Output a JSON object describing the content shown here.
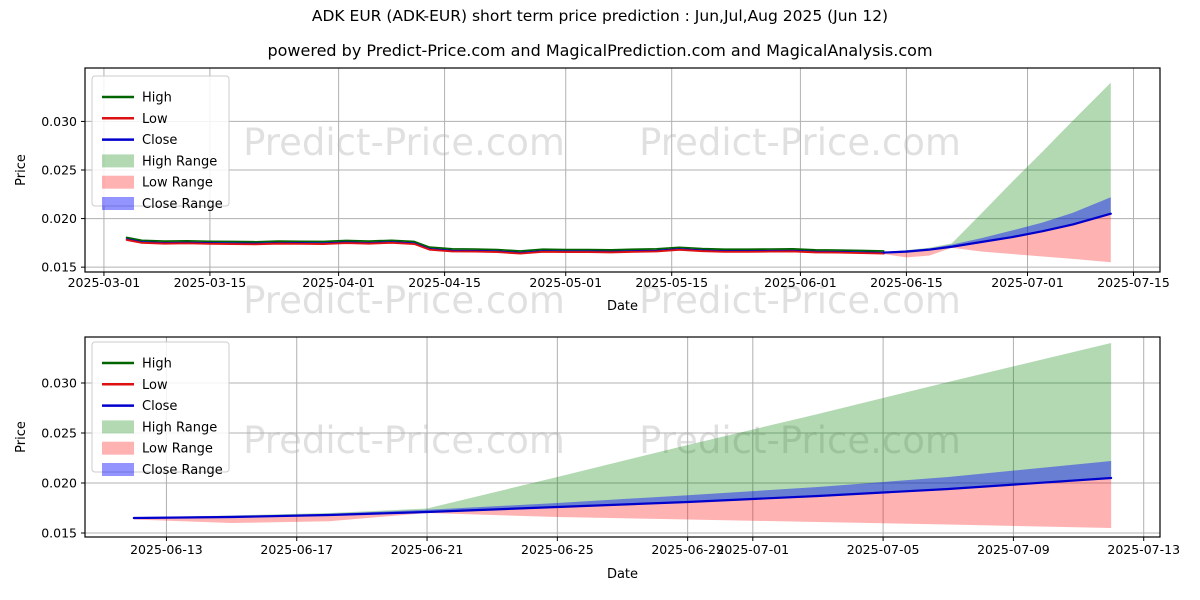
{
  "page": {
    "title": "ADK EUR (ADK-EUR) short term price prediction : Jun,Jul,Aug 2025 (Jun 12)",
    "subtitle": "powered by Predict-Price.com and MagicalPrediction.com and MagicalAnalysis.com",
    "watermark": "Predict-Price.com"
  },
  "colors": {
    "high": "#006400",
    "low": "#dd1111",
    "close": "#0000cc",
    "high_range": "#0080004d",
    "low_range": "#ff00004d",
    "close_range": "#0000ff6b",
    "grid": "#b0b0b0",
    "spine": "#000000"
  },
  "chart_data": {
    "type": "line",
    "legend_position": "upper left",
    "grid": true,
    "legend": [
      {
        "label": "High",
        "swatch": "line",
        "color_key": "high"
      },
      {
        "label": "Low",
        "swatch": "line",
        "color_key": "low"
      },
      {
        "label": "Close",
        "swatch": "line",
        "color_key": "close"
      },
      {
        "label": "High Range",
        "swatch": "patch",
        "color_key": "high_range"
      },
      {
        "label": "Low Range",
        "swatch": "patch",
        "color_key": "low_range"
      },
      {
        "label": "Close Range",
        "swatch": "patch",
        "color_key": "close_range"
      }
    ],
    "historical": {
      "dates": [
        "2025-03-04",
        "2025-03-06",
        "2025-03-09",
        "2025-03-12",
        "2025-03-15",
        "2025-03-18",
        "2025-03-21",
        "2025-03-24",
        "2025-03-27",
        "2025-03-30",
        "2025-04-02",
        "2025-04-05",
        "2025-04-08",
        "2025-04-11",
        "2025-04-13",
        "2025-04-16",
        "2025-04-19",
        "2025-04-22",
        "2025-04-25",
        "2025-04-28",
        "2025-05-01",
        "2025-05-04",
        "2025-05-07",
        "2025-05-10",
        "2025-05-13",
        "2025-05-16",
        "2025-05-19",
        "2025-05-22",
        "2025-05-25",
        "2025-05-28",
        "2025-05-31",
        "2025-06-03",
        "2025-06-06",
        "2025-06-09",
        "2025-06-12"
      ],
      "high": [
        0.01806,
        0.01776,
        0.01768,
        0.01771,
        0.01766,
        0.01764,
        0.01761,
        0.01768,
        0.01766,
        0.01764,
        0.01774,
        0.01768,
        0.01776,
        0.01764,
        0.01706,
        0.01688,
        0.01686,
        0.01681,
        0.01666,
        0.01684,
        0.01681,
        0.01681,
        0.01678,
        0.01684,
        0.01688,
        0.01704,
        0.01691,
        0.01684,
        0.01684,
        0.01686,
        0.01688,
        0.01678,
        0.01676,
        0.01671,
        0.01666
      ],
      "low": [
        0.0178,
        0.0175,
        0.01742,
        0.01745,
        0.0174,
        0.01738,
        0.01735,
        0.01742,
        0.0174,
        0.01738,
        0.01748,
        0.01742,
        0.0175,
        0.01738,
        0.0168,
        0.01662,
        0.0166,
        0.01655,
        0.0164,
        0.01658,
        0.01655,
        0.01655,
        0.01652,
        0.01658,
        0.01662,
        0.01678,
        0.01665,
        0.01658,
        0.01658,
        0.0166,
        0.01662,
        0.01652,
        0.0165,
        0.01645,
        0.0164
      ],
      "close": [
        0.0179,
        0.0176,
        0.01752,
        0.01755,
        0.0175,
        0.01748,
        0.01745,
        0.01752,
        0.0175,
        0.01748,
        0.01758,
        0.01752,
        0.0176,
        0.01748,
        0.0169,
        0.01672,
        0.0167,
        0.01665,
        0.0165,
        0.01668,
        0.01665,
        0.01665,
        0.01662,
        0.01668,
        0.01672,
        0.01688,
        0.01675,
        0.01668,
        0.01668,
        0.0167,
        0.01672,
        0.01662,
        0.0166,
        0.01655,
        0.0165
      ]
    },
    "prediction": {
      "dates": [
        "2025-06-12",
        "2025-06-15",
        "2025-06-18",
        "2025-06-21",
        "2025-06-25",
        "2025-06-29",
        "2025-07-03",
        "2025-07-07",
        "2025-07-12"
      ],
      "close": [
        0.0165,
        0.0166,
        0.0168,
        0.0171,
        0.0176,
        0.0181,
        0.0187,
        0.0194,
        0.0205
      ],
      "high_range_upper": [
        0.01655,
        0.01675,
        0.017,
        0.01745,
        0.0206,
        0.0238,
        0.0269,
        0.0301,
        0.034
      ],
      "low_range_lower": [
        0.01635,
        0.016,
        0.01618,
        0.017,
        0.0166,
        0.01635,
        0.0161,
        0.01585,
        0.0155
      ],
      "close_range_upper": [
        0.01655,
        0.01672,
        0.01692,
        0.01732,
        0.018,
        0.01878,
        0.0196,
        0.0206,
        0.0222
      ]
    },
    "charts": [
      {
        "name": "full-range",
        "xlabel": "Date",
        "ylabel": "Price",
        "ylim": [
          0.0145,
          0.0355
        ],
        "x_min": "2025-02-26T12:00",
        "x_max": "2025-07-18T12:00",
        "x_ticks": [
          "2025-03-01",
          "2025-03-15",
          "2025-04-01",
          "2025-04-15",
          "2025-05-01",
          "2025-05-15",
          "2025-06-01",
          "2025-06-15",
          "2025-07-01",
          "2025-07-15"
        ],
        "y_ticks": [
          "0.015",
          "0.020",
          "0.025",
          "0.030"
        ],
        "show_historical": true
      },
      {
        "name": "prediction-zoom",
        "xlabel": "Date",
        "ylabel": "Price",
        "ylim": [
          0.0146,
          0.0346
        ],
        "x_min": "2025-06-10T12:00",
        "x_max": "2025-07-13T12:00",
        "x_ticks": [
          "2025-06-13",
          "2025-06-17",
          "2025-06-21",
          "2025-06-25",
          "2025-06-29",
          "2025-07-01",
          "2025-07-05",
          "2025-07-09",
          "2025-07-13"
        ],
        "y_ticks": [
          "0.015",
          "0.020",
          "0.025",
          "0.030"
        ],
        "show_historical": false
      }
    ]
  }
}
